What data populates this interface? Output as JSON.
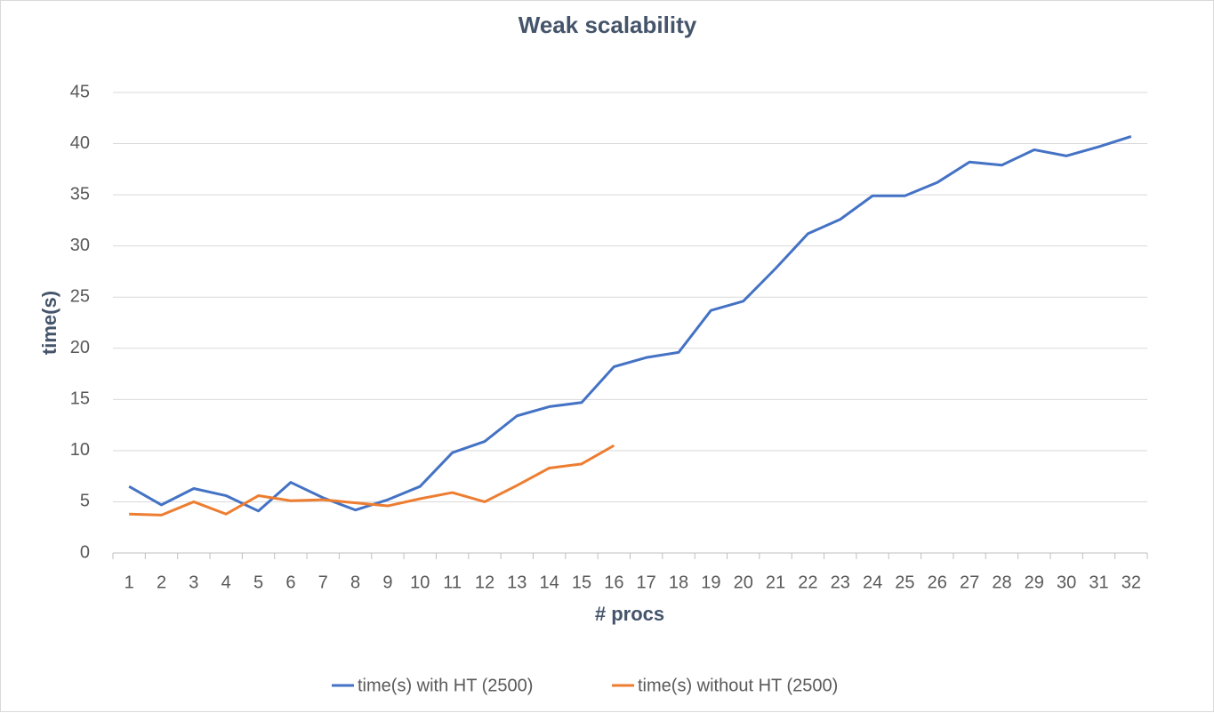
{
  "chart_data": {
    "type": "line",
    "title": "Weak scalability",
    "x_label": "# procs",
    "y_label": "time(s)",
    "categories": [
      "1",
      "2",
      "3",
      "4",
      "5",
      "6",
      "7",
      "8",
      "9",
      "10",
      "11",
      "12",
      "13",
      "14",
      "15",
      "16",
      "17",
      "18",
      "19",
      "20",
      "21",
      "22",
      "23",
      "24",
      "25",
      "26",
      "27",
      "28",
      "29",
      "30",
      "31",
      "32"
    ],
    "series": [
      {
        "name": "time(s) with HT (2500)",
        "color": "#4472c4",
        "values": [
          6.5,
          4.7,
          6.3,
          5.6,
          4.1,
          6.9,
          5.4,
          4.2,
          5.2,
          6.5,
          9.8,
          10.9,
          13.4,
          14.3,
          14.7,
          18.2,
          19.1,
          19.6,
          23.7,
          24.6,
          27.8,
          31.2,
          32.6,
          34.9,
          34.9,
          36.2,
          38.2,
          37.9,
          39.4,
          38.8,
          39.7,
          40.7
        ]
      },
      {
        "name": "time(s) without HT (2500)",
        "color": "#ed7d31",
        "values": [
          3.8,
          3.7,
          5.0,
          3.8,
          5.6,
          5.1,
          5.2,
          4.9,
          4.6,
          5.3,
          5.9,
          5.0,
          6.6,
          8.3,
          8.7,
          10.5,
          null,
          null,
          null,
          null,
          null,
          null,
          null,
          null,
          null,
          null,
          null,
          null,
          null,
          null,
          null,
          null
        ]
      }
    ],
    "ylim": [
      0,
      45
    ],
    "yticks": [
      0,
      5,
      10,
      15,
      20,
      25,
      30,
      35,
      40,
      45
    ],
    "grid": true,
    "legend": "bottom"
  }
}
